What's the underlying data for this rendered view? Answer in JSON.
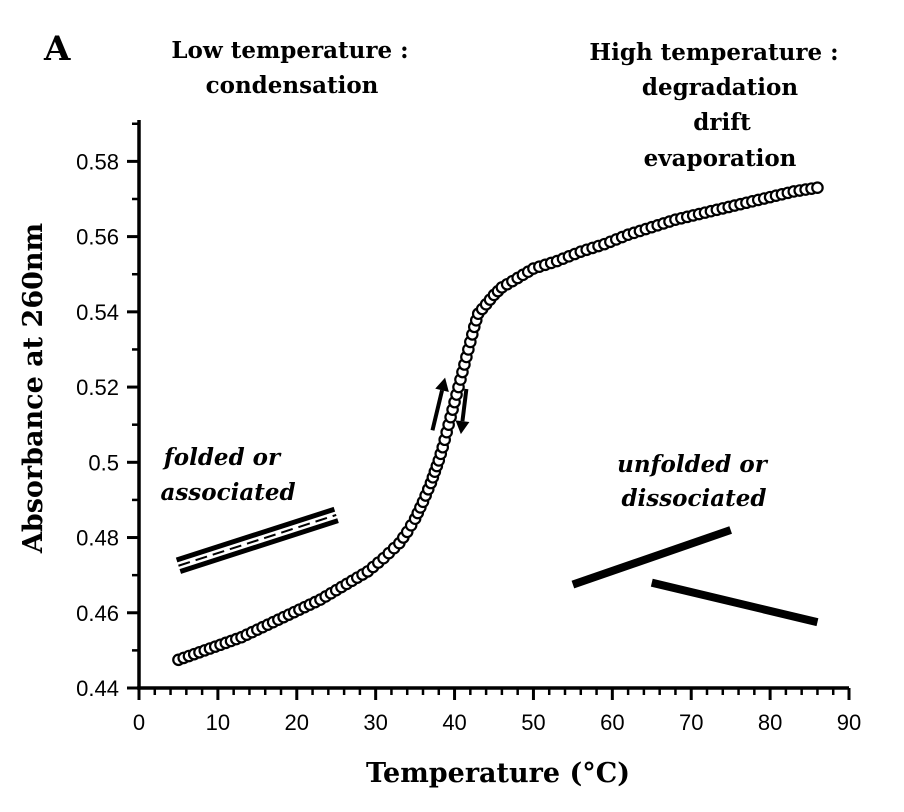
{
  "chart_data": {
    "type": "scatter",
    "panel_label": "A",
    "xlabel": "Temperature (°C)",
    "ylabel": "Absorbance at 260nm",
    "xlim": [
      0,
      90
    ],
    "ylim": [
      0.44,
      0.59
    ],
    "x_ticks": [
      0,
      10,
      20,
      30,
      40,
      50,
      60,
      70,
      80,
      90
    ],
    "x_tick_labels": [
      "0",
      "10",
      "20",
      "30",
      "40",
      "50",
      "60",
      "70",
      "80",
      "90"
    ],
    "y_ticks": [
      0.44,
      0.46,
      0.48,
      0.5,
      0.52,
      0.54,
      0.56,
      0.58
    ],
    "y_tick_labels": [
      "0.44",
      "0.46",
      "0.48",
      "0.5",
      "0.52",
      "0.54",
      "0.56",
      "0.58"
    ],
    "grid": false,
    "annotations": {
      "low_title": "Low temperature :",
      "low_line2": "condensation",
      "high_title": "High temperature :",
      "high_line2": "degradation",
      "high_line3": "drift",
      "high_line4": "evaporation",
      "folded_line1": "folded or",
      "folded_line2": "associated",
      "unfolded_line1": "unfolded or",
      "unfolded_line2": "dissociated"
    },
    "series": [
      {
        "marker": "open-circle",
        "x": [
          5,
          7,
          9,
          11,
          13,
          15,
          17,
          19,
          21,
          23,
          25,
          27,
          29,
          31,
          33,
          34,
          35,
          36,
          37,
          38,
          38.5,
          39,
          39.5,
          40,
          40.5,
          41,
          41.5,
          42,
          42.5,
          43,
          44,
          45,
          46,
          48,
          50,
          53,
          56,
          59,
          62,
          65,
          68,
          71,
          74,
          77,
          80,
          83,
          86
        ],
        "y": [
          0.4475,
          0.449,
          0.4505,
          0.452,
          0.4535,
          0.4555,
          0.4575,
          0.4595,
          0.4615,
          0.4635,
          0.466,
          0.4685,
          0.471,
          0.4745,
          0.4785,
          0.4815,
          0.485,
          0.4895,
          0.4945,
          0.5005,
          0.504,
          0.508,
          0.512,
          0.516,
          0.52,
          0.524,
          0.528,
          0.532,
          0.536,
          0.5395,
          0.542,
          0.5445,
          0.5465,
          0.549,
          0.5515,
          0.5535,
          0.556,
          0.558,
          0.5605,
          0.5625,
          0.5645,
          0.566,
          0.5675,
          0.569,
          0.5705,
          0.572,
          0.573
        ]
      }
    ],
    "baselines": {
      "folded": {
        "x": [
          5,
          25
        ],
        "y": [
          0.4725,
          0.486
        ]
      },
      "unfolded_rising": {
        "x": [
          55,
          75
        ],
        "y": [
          0.4675,
          0.482
        ]
      },
      "unfolded_falling": {
        "x": [
          65,
          86
        ],
        "y": [
          0.468,
          0.4575
        ]
      }
    },
    "arrows": {
      "up": {
        "x": [
          37.2,
          38.8
        ],
        "y": [
          0.5085,
          0.5225
        ]
      },
      "down": {
        "x": [
          41.5,
          40.8
        ],
        "y": [
          0.5195,
          0.5075
        ]
      }
    }
  }
}
